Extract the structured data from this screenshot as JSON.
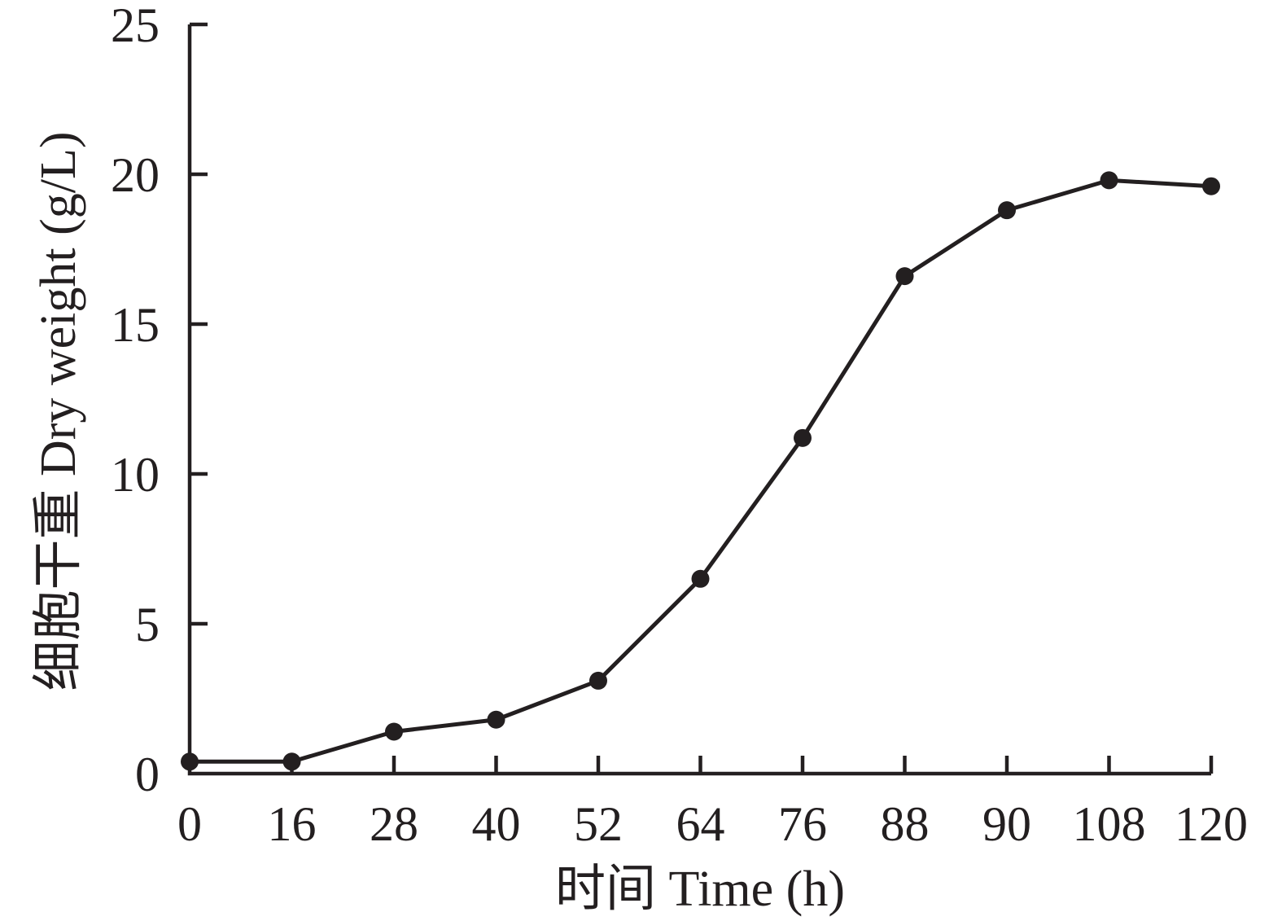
{
  "chart_data": {
    "type": "line",
    "title": "",
    "categories": [
      0,
      16,
      28,
      40,
      52,
      64,
      76,
      88,
      90,
      108,
      120
    ],
    "series": [
      {
        "name": "dry-weight",
        "values": [
          0.4,
          0.4,
          1.4,
          1.8,
          3.1,
          6.5,
          11.2,
          16.6,
          18.8,
          19.8,
          19.6
        ]
      }
    ],
    "xlabel": "时间 Time (h)",
    "ylabel": "细胞干重 Dry weight (g/L)",
    "ylim": [
      0,
      25
    ],
    "yticks": [
      0,
      5,
      10,
      15,
      20,
      25
    ],
    "grid": false,
    "legend_position": "none",
    "marker": "filled-circle",
    "line_color": "#231f20",
    "marker_color": "#231f20",
    "axis_color": "#231f20",
    "background_color": "#ffffff"
  }
}
